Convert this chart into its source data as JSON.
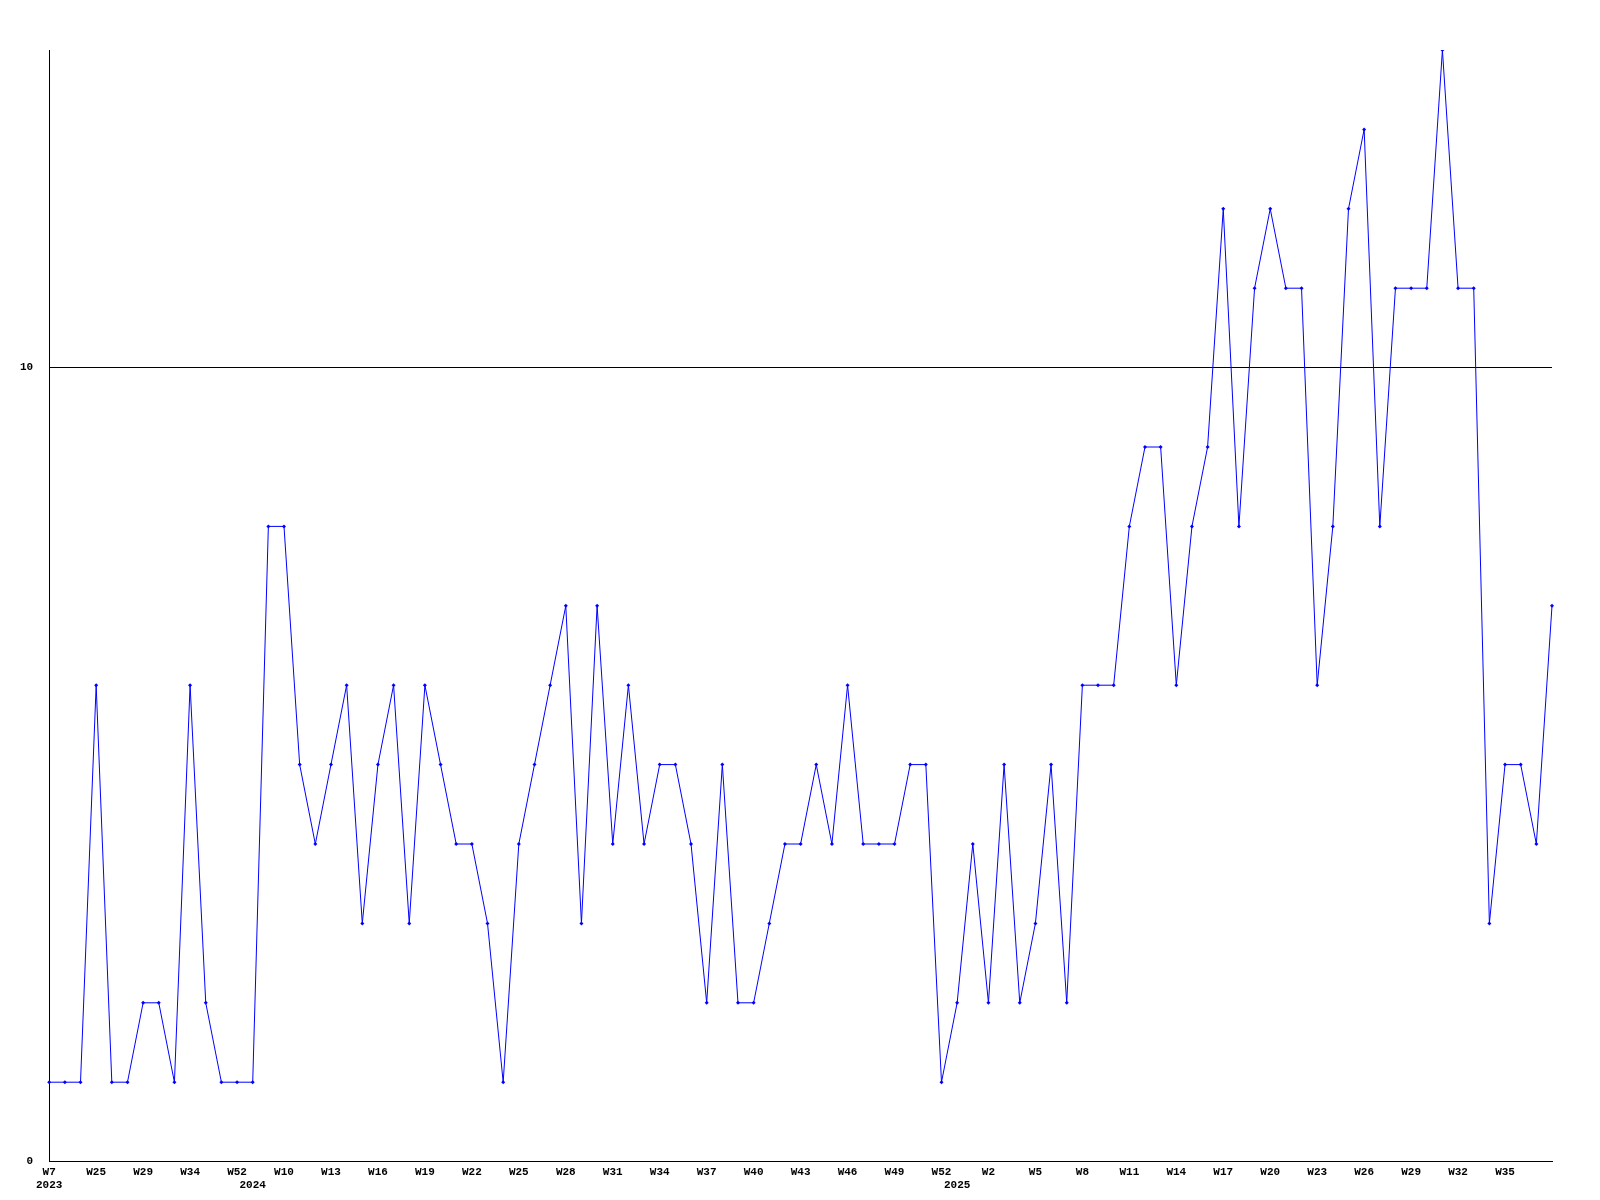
{
  "chart_data": {
    "type": "line",
    "categories": [
      "W7\n2023",
      null,
      null,
      "W25",
      null,
      null,
      "W29",
      null,
      null,
      "W34",
      null,
      null,
      "W52",
      "\n2024",
      null,
      "W10",
      null,
      null,
      "W13",
      null,
      null,
      "W16",
      null,
      null,
      "W19",
      null,
      null,
      "W22",
      null,
      null,
      "W25",
      null,
      null,
      "W28",
      null,
      null,
      "W31",
      null,
      null,
      "W34",
      null,
      null,
      "W37",
      null,
      null,
      "W40",
      null,
      null,
      "W43",
      null,
      null,
      "W46",
      null,
      null,
      "W49",
      null,
      null,
      "W52",
      "\n2025",
      null,
      "W2",
      null,
      null,
      "W5",
      null,
      null,
      "W8",
      null,
      null,
      "W11",
      null,
      null,
      "W14",
      null,
      null,
      "W17",
      null,
      null,
      "W20",
      null,
      null,
      "W23",
      null,
      null,
      "W26",
      null,
      null,
      "W29",
      null,
      null,
      "W32",
      null,
      null,
      "W35",
      null,
      null,
      null
    ],
    "series": [
      {
        "color": "#0000ff",
        "values": [
          1,
          1,
          1,
          6,
          1,
          1,
          2,
          2,
          1,
          6,
          2,
          1,
          1,
          1,
          8,
          8,
          5,
          4,
          5,
          6,
          3,
          5,
          6,
          3,
          6,
          5,
          4,
          4,
          3,
          1,
          4,
          5,
          6,
          7,
          3,
          7,
          4,
          6,
          4,
          5,
          5,
          4,
          2,
          5,
          2,
          2,
          3,
          4,
          4,
          5,
          4,
          6,
          4,
          4,
          4,
          5,
          5,
          1,
          2,
          4,
          2,
          5,
          2,
          3,
          5,
          2,
          6,
          6,
          6,
          8,
          9,
          9,
          6,
          8,
          9,
          12,
          8,
          11,
          12,
          11,
          11,
          6,
          8,
          12,
          13,
          8,
          11,
          11,
          11,
          14,
          11,
          11,
          3,
          5,
          5,
          4,
          7
        ]
      }
    ],
    "ylim": [
      0,
      14
    ],
    "yticks": [
      0,
      10
    ],
    "grid": "y",
    "marker": "diamond",
    "line_style": "solid"
  }
}
